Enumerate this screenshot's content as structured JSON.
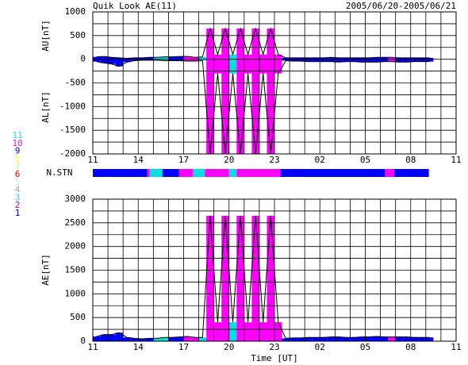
{
  "chart_data": {
    "type": "quicklook",
    "title": "Quik Look AE(11)",
    "date_range": "2005/06/20-2005/06/21",
    "xlabel": "Time [UT]",
    "station_label": "N.STN",
    "xlim": [
      11,
      35
    ],
    "xticks": [
      11,
      14,
      17,
      20,
      23,
      {
        "value": 26,
        "label": "02"
      },
      {
        "value": 29,
        "label": "05"
      },
      {
        "value": 32,
        "label": "08"
      },
      {
        "value": 35,
        "label": "11"
      }
    ],
    "xminor": [
      11,
      12,
      13,
      14,
      15,
      16,
      17,
      18,
      19,
      20,
      21,
      22,
      23,
      24,
      25,
      26,
      27,
      28,
      29,
      30,
      31,
      32,
      33,
      34,
      35
    ],
    "top": {
      "ylabel_upper": "AU[nT]",
      "ylabel_lower": "AL[nT]",
      "ylim": [
        -2000,
        1000
      ],
      "yticks": [
        -2000,
        -1500,
        -1000,
        -500,
        0,
        500,
        1000
      ],
      "yminor": [
        -2000,
        -1750,
        -1500,
        -1250,
        -1000,
        -750,
        -500,
        -250,
        0,
        250,
        500,
        750,
        1000
      ]
    },
    "bottom": {
      "ylabel": "AE[nT]",
      "ylim": [
        0,
        3000
      ],
      "yticks": [
        0,
        500,
        1000,
        1500,
        2000,
        2500,
        3000
      ],
      "yminor": [
        0,
        250,
        500,
        750,
        1000,
        1250,
        1500,
        1750,
        2000,
        2250,
        2500,
        2750,
        3000
      ]
    },
    "legend": [
      {
        "label": "11",
        "color": "#00e0e0"
      },
      {
        "label": "10",
        "color": "#ff00ff"
      },
      {
        "label": "9",
        "color": "#0000ff"
      },
      {
        "label": "8",
        "color": "#ffff60"
      },
      {
        "label": "7",
        "color": "#c0ff80"
      },
      {
        "label": "6",
        "color": "#ff0000"
      },
      {
        "label": "5",
        "color": "#d8d8d8"
      },
      {
        "label": "4",
        "color": "#a0a0a0"
      },
      {
        "label": "3",
        "color": "#40c0c0"
      },
      {
        "label": "2",
        "color": "#c000c0"
      },
      {
        "label": "1",
        "color": "#0000c0"
      }
    ],
    "stations": [
      {
        "start": 11,
        "end": 14.6,
        "color": "#0000ff"
      },
      {
        "start": 14.6,
        "end": 14.75,
        "color": "#ff00ff"
      },
      {
        "start": 14.75,
        "end": 15.6,
        "color": "#00e0e0"
      },
      {
        "start": 15.6,
        "end": 16.7,
        "color": "#0000ff"
      },
      {
        "start": 16.7,
        "end": 17.6,
        "color": "#ff00ff"
      },
      {
        "start": 17.6,
        "end": 18.4,
        "color": "#00e0e0"
      },
      {
        "start": 18.4,
        "end": 20,
        "color": "#ff00ff"
      },
      {
        "start": 20,
        "end": 20.5,
        "color": "#00e0e0"
      },
      {
        "start": 20.5,
        "end": 23.4,
        "color": "#ff00ff"
      },
      {
        "start": 23.4,
        "end": 30.3,
        "color": "#0000ff"
      },
      {
        "start": 30.3,
        "end": 30.9,
        "color": "#ff00ff"
      },
      {
        "start": 30.9,
        "end": 33.2,
        "color": "#0000ff"
      }
    ],
    "line_color": "#000000",
    "x": [
      11,
      11.5,
      12,
      12.5,
      13,
      13.5,
      14,
      14.5,
      15,
      15.5,
      16,
      16.5,
      17,
      17.5,
      18,
      18.5,
      19,
      19.5,
      20,
      20.5,
      21,
      21.5,
      22,
      22.5,
      23,
      23.5,
      24,
      24.5,
      25,
      25.5,
      26,
      26.5,
      27,
      27.5,
      28,
      28.5,
      29,
      29.5,
      30,
      30.5,
      31,
      31.5,
      32,
      32.5,
      33
    ],
    "au": [
      50,
      60,
      40,
      30,
      20,
      30,
      30,
      40,
      40,
      50,
      50,
      60,
      60,
      40,
      50,
      650,
      100,
      650,
      100,
      650,
      100,
      650,
      100,
      650,
      100,
      30,
      30,
      30,
      30,
      30,
      30,
      40,
      30,
      30,
      30,
      30,
      30,
      40,
      40,
      40,
      30,
      30,
      30,
      30,
      30
    ],
    "al": [
      -50,
      -80,
      -100,
      -150,
      -60,
      -30,
      -20,
      -20,
      -20,
      -30,
      -30,
      -30,
      -40,
      -40,
      -30,
      -2000,
      -300,
      -2000,
      -300,
      -2000,
      -300,
      -2000,
      -300,
      -2000,
      -300,
      -30,
      -40,
      -40,
      -50,
      -50,
      -50,
      -50,
      -60,
      -50,
      -50,
      -60,
      -60,
      -60,
      -50,
      -50,
      -60,
      -60,
      -50,
      -50,
      -50
    ],
    "ae": [
      100,
      140,
      140,
      180,
      80,
      60,
      50,
      60,
      60,
      80,
      80,
      90,
      100,
      80,
      80,
      2650,
      400,
      2650,
      400,
      2650,
      400,
      2650,
      400,
      2650,
      400,
      60,
      70,
      70,
      80,
      80,
      80,
      90,
      90,
      80,
      80,
      90,
      90,
      100,
      90,
      90,
      90,
      90,
      80,
      80,
      80
    ]
  }
}
